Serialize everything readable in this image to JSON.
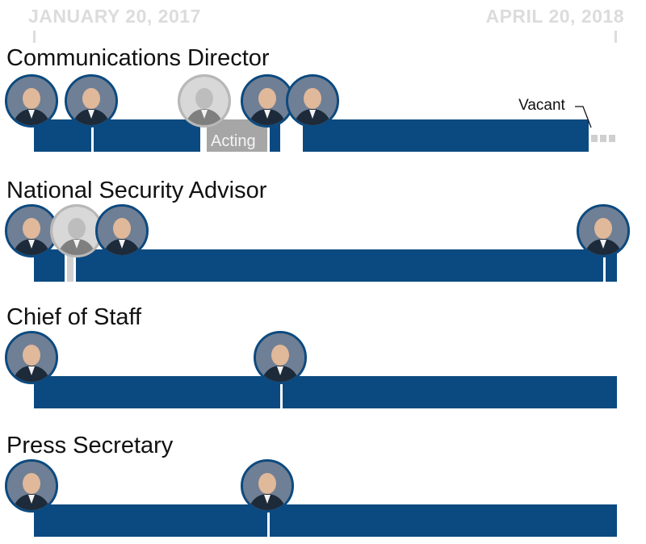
{
  "timeline": {
    "start_label": "JANUARY 20, 2017",
    "end_label": "APRIL 20, 2018",
    "start_date": "2017-01-20",
    "end_date": "2018-04-20"
  },
  "colors": {
    "filled": "#0b4a80",
    "acting": "#a6a6a6",
    "interim": "#d0d0d0",
    "axis_text": "#dcdcdc"
  },
  "chart_data": {
    "type": "bar",
    "title": "",
    "xlabel": "",
    "ylabel": "",
    "xlim": [
      "2017-01-20",
      "2018-04-20"
    ],
    "grid": false,
    "series": [
      {
        "name": "Communications Director",
        "acting_label": "Acting",
        "vacant_label": "Vacant",
        "segments": [
          {
            "start": "2017-01-20",
            "end": "2017-03-06",
            "status": "filled",
            "portrait": "generic"
          },
          {
            "start": "2017-03-06",
            "end": "2017-05-30",
            "status": "filled",
            "portrait": "generic"
          },
          {
            "start": "2017-06-02",
            "end": "2017-07-21",
            "status": "acting",
            "portrait": "generic"
          },
          {
            "start": "2017-07-21",
            "end": "2017-07-31",
            "status": "filled",
            "portrait": "generic"
          },
          {
            "start": "2017-08-16",
            "end": "2018-03-29",
            "status": "filled",
            "portrait": "generic"
          },
          {
            "start": "2018-03-29",
            "end": "2018-04-20",
            "status": "vacant"
          }
        ]
      },
      {
        "name": "National Security Advisor",
        "segments": [
          {
            "start": "2017-01-20",
            "end": "2017-02-13",
            "status": "filled",
            "portrait": "generic"
          },
          {
            "start": "2017-02-13",
            "end": "2017-02-20",
            "status": "acting",
            "portrait": "generic"
          },
          {
            "start": "2017-02-20",
            "end": "2018-04-09",
            "status": "filled",
            "portrait": "generic"
          },
          {
            "start": "2018-04-09",
            "end": "2018-04-20",
            "status": "filled",
            "portrait": "generic"
          }
        ]
      },
      {
        "name": "Chief of Staff",
        "segments": [
          {
            "start": "2017-01-20",
            "end": "2017-07-31",
            "status": "filled",
            "portrait": "generic"
          },
          {
            "start": "2017-07-31",
            "end": "2018-04-20",
            "status": "filled",
            "portrait": "generic"
          }
        ]
      },
      {
        "name": "Press Secretary",
        "segments": [
          {
            "start": "2017-01-20",
            "end": "2017-07-21",
            "status": "filled",
            "portrait": "generic"
          },
          {
            "start": "2017-07-21",
            "end": "2018-04-20",
            "status": "filled",
            "portrait": "generic"
          }
        ]
      }
    ]
  }
}
